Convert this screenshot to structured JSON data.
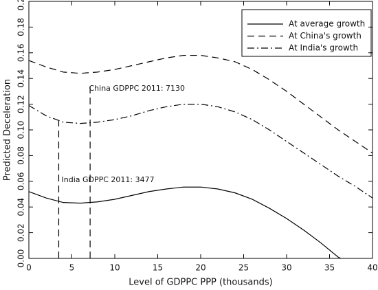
{
  "chart_data": {
    "type": "line",
    "xlabel": "Level of GDPPC PPP (thousands)",
    "ylabel": "Predicted Deceleration",
    "xlim": [
      0,
      40
    ],
    "ylim": [
      0,
      0.2
    ],
    "xticks": [
      0,
      5,
      10,
      15,
      20,
      25,
      30,
      35,
      40
    ],
    "yticks": [
      {
        "value": 0,
        "label": "0.00"
      },
      {
        "value": 0.02,
        "label": "0.02"
      },
      {
        "value": 0.04,
        "label": "0.04"
      },
      {
        "value": 0.06,
        "label": "0.06"
      },
      {
        "value": 0.08,
        "label": "0.08"
      },
      {
        "value": 0.1,
        "label": "0.10"
      },
      {
        "value": 0.12,
        "label": "0.12"
      },
      {
        "value": 0.14,
        "label": "0.14"
      },
      {
        "value": 0.16,
        "label": "0.16"
      },
      {
        "value": 0.18,
        "label": "0.18"
      },
      {
        "value": 0.2,
        "label": "0.20"
      }
    ],
    "legend": "upper right",
    "series": [
      {
        "name": "At average growth",
        "color": "#000000",
        "style": "solid",
        "x": [
          0,
          2,
          4,
          6,
          8,
          10,
          12,
          14,
          16,
          18,
          20,
          22,
          24,
          26,
          28,
          30,
          32,
          34,
          36,
          36.3
        ],
        "values": [
          0.052,
          0.047,
          0.0435,
          0.043,
          0.044,
          0.046,
          0.049,
          0.052,
          0.054,
          0.0555,
          0.0555,
          0.054,
          0.051,
          0.046,
          0.039,
          0.031,
          0.022,
          0.012,
          0.001,
          0
        ]
      },
      {
        "name": "At China's growth",
        "color": "#000000",
        "style": "dashed",
        "x": [
          0,
          2,
          4,
          6,
          8,
          10,
          12,
          14,
          16,
          18,
          20,
          22,
          24,
          26,
          28,
          30,
          32,
          34,
          36,
          38,
          40
        ],
        "values": [
          0.154,
          0.149,
          0.145,
          0.144,
          0.145,
          0.147,
          0.15,
          0.153,
          0.156,
          0.158,
          0.158,
          0.156,
          0.153,
          0.147,
          0.139,
          0.13,
          0.12,
          0.11,
          0.1,
          0.091,
          0.082
        ]
      },
      {
        "name": "At India's growth",
        "color": "#000000",
        "style": "dashdot",
        "x": [
          0,
          2,
          4,
          6,
          8,
          10,
          12,
          14,
          16,
          18,
          20,
          22,
          24,
          26,
          28,
          30,
          32,
          34,
          36,
          38,
          40
        ],
        "values": [
          0.119,
          0.111,
          0.106,
          0.105,
          0.106,
          0.108,
          0.111,
          0.115,
          0.118,
          0.12,
          0.12,
          0.118,
          0.114,
          0.108,
          0.1,
          0.091,
          0.082,
          0.073,
          0.064,
          0.056,
          0.047
        ]
      }
    ],
    "annotations": [
      {
        "text": "India GDPPC 2011: 3477",
        "x": 3.477,
        "top": 0.107,
        "text_x": 3.8,
        "text_y": 0.061
      },
      {
        "text": "China GDPPC 2011: 7130",
        "x": 7.13,
        "top": 0.135,
        "text_x": 7,
        "text_y": 0.132
      }
    ]
  }
}
